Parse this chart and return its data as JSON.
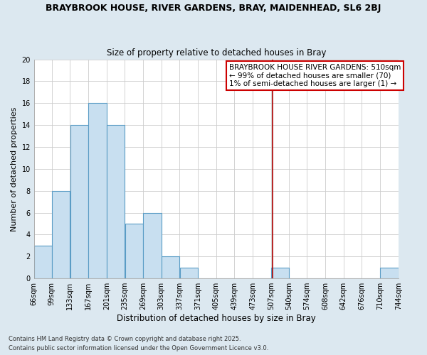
{
  "title": "BRAYBROOK HOUSE, RIVER GARDENS, BRAY, MAIDENHEAD, SL6 2BJ",
  "subtitle": "Size of property relative to detached houses in Bray",
  "xlabel": "Distribution of detached houses by size in Bray",
  "ylabel": "Number of detached properties",
  "bins": [
    66,
    99,
    133,
    167,
    201,
    235,
    269,
    303,
    337,
    371,
    405,
    439,
    473,
    507,
    540,
    574,
    608,
    642,
    676,
    710,
    744
  ],
  "counts": [
    3,
    8,
    14,
    16,
    14,
    5,
    6,
    2,
    1,
    0,
    0,
    0,
    0,
    1,
    0,
    0,
    0,
    0,
    0,
    1
  ],
  "bar_color": "#c8dff0",
  "bar_edge_color": "#5a9cc5",
  "vline_x": 510,
  "vline_color": "#aa0000",
  "annotation_text_line1": "BRAYBROOK HOUSE RIVER GARDENS: 510sqm",
  "annotation_text_line2": "← 99% of detached houses are smaller (70)",
  "annotation_text_line3": "1% of semi-detached houses are larger (1) →",
  "ylim": [
    0,
    20
  ],
  "tick_labels": [
    "66sqm",
    "99sqm",
    "133sqm",
    "167sqm",
    "201sqm",
    "235sqm",
    "269sqm",
    "303sqm",
    "337sqm",
    "371sqm",
    "405sqm",
    "439sqm",
    "473sqm",
    "507sqm",
    "540sqm",
    "574sqm",
    "608sqm",
    "642sqm",
    "676sqm",
    "710sqm",
    "744sqm"
  ],
  "footnote1": "Contains HM Land Registry data © Crown copyright and database right 2025.",
  "footnote2": "Contains public sector information licensed under the Open Government Licence v3.0.",
  "figure_bg_color": "#dce8f0",
  "plot_bg_color": "#ffffff",
  "grid_color": "#cccccc",
  "title_fontsize": 9,
  "subtitle_fontsize": 8.5,
  "xlabel_fontsize": 8.5,
  "ylabel_fontsize": 8,
  "tick_fontsize": 7,
  "annotation_fontsize": 7.5,
  "footnote_fontsize": 6
}
